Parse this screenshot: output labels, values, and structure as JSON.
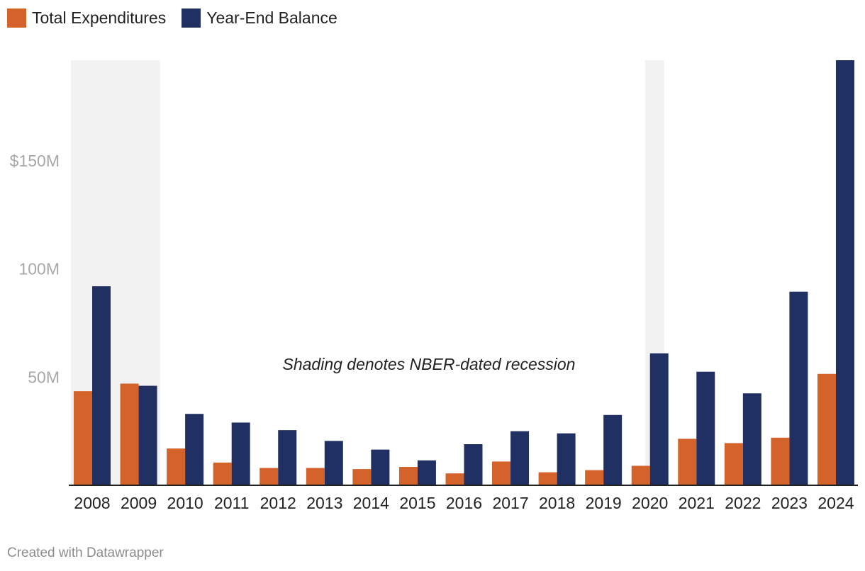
{
  "chart_data": {
    "type": "bar",
    "categories": [
      "2008",
      "2009",
      "2010",
      "2011",
      "2012",
      "2013",
      "2014",
      "2015",
      "2016",
      "2017",
      "2018",
      "2019",
      "2020",
      "2021",
      "2022",
      "2023",
      "2024"
    ],
    "series": [
      {
        "name": "Total Expenditures",
        "color": "#d4622b",
        "values": [
          43.5,
          47,
          17,
          10.5,
          8,
          8,
          7.5,
          8.5,
          5.5,
          11,
          6,
          7,
          9,
          21.5,
          19.5,
          22,
          51.5
        ]
      },
      {
        "name": "Year-End Balance",
        "color": "#213063",
        "values": [
          92,
          46,
          33,
          29,
          25.5,
          20.5,
          16.5,
          11.5,
          19,
          25,
          24,
          32.5,
          61,
          52.5,
          42.5,
          89.5,
          196.5
        ]
      }
    ],
    "yticks": [
      {
        "value": 50,
        "label": "50M"
      },
      {
        "value": 100,
        "label": "100M"
      },
      {
        "value": 150,
        "label": "$150M"
      }
    ],
    "ylim": [
      0,
      196.5
    ],
    "recessions": [
      [
        "2008",
        "2009"
      ],
      [
        "2020",
        "2020"
      ]
    ],
    "recession_color": "#f2f2f2",
    "annotation": "Shading denotes NBER-dated recession",
    "grid": false,
    "legend_position": "top-left"
  },
  "footer": "Created with Datawrapper"
}
